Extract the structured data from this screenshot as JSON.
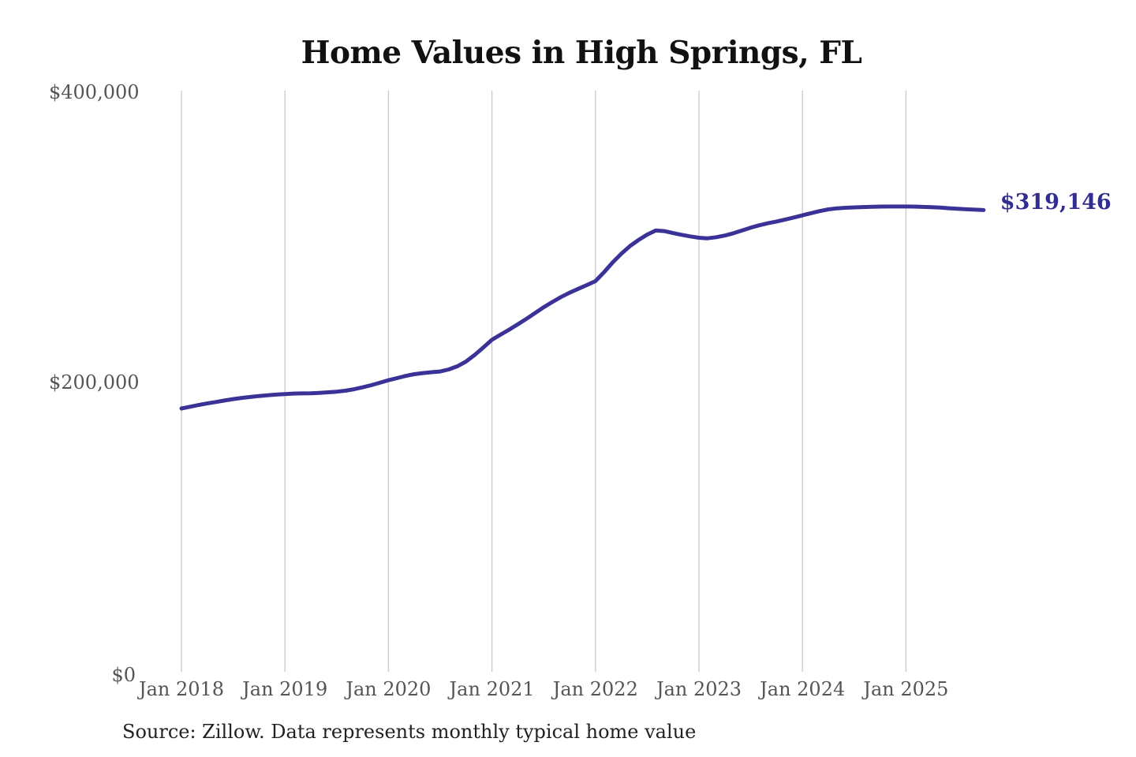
{
  "header": {
    "title": "Home Values in High Springs, FL"
  },
  "footer": {
    "source_note": "Source: Zillow. Data represents monthly typical home value"
  },
  "chart_data": {
    "type": "line",
    "title": "Home Values in High Springs, FL",
    "xlabel": "",
    "ylabel": "",
    "ylim": [
      0,
      400000
    ],
    "grid": "vertical gridlines at each January, no horizontal gridlines, no axis lines",
    "legend": "none",
    "y_ticks": [
      {
        "label": "$0",
        "value": 0
      },
      {
        "label": "$200,000",
        "value": 200000
      },
      {
        "label": "$400,000",
        "value": 400000
      }
    ],
    "x_ticks": [
      "Jan 2018",
      "Jan 2019",
      "Jan 2020",
      "Jan 2021",
      "Jan 2022",
      "Jan 2023",
      "Jan 2024",
      "Jan 2025"
    ],
    "end_label": "$319,146",
    "final_value": 319146,
    "series": [
      {
        "name": "Monthly typical home value",
        "start_month": "2018-01",
        "end_month": "2025-10",
        "values": [
          182000,
          183200,
          184400,
          185500,
          186500,
          187500,
          188500,
          189300,
          190000,
          190600,
          191100,
          191600,
          192000,
          192300,
          192400,
          192500,
          192800,
          193200,
          193600,
          194300,
          195300,
          196600,
          198100,
          199800,
          201500,
          203000,
          204500,
          205700,
          206500,
          207100,
          207600,
          209000,
          211200,
          214500,
          219000,
          224200,
          229500,
          233000,
          236500,
          240200,
          244000,
          248000,
          252000,
          255600,
          259000,
          262000,
          264700,
          267300,
          270000,
          276200,
          283000,
          289000,
          294200,
          298500,
          302200,
          305000,
          304600,
          303200,
          302000,
          300900,
          300000,
          299600,
          300400,
          301500,
          303100,
          305000,
          307000,
          308600,
          310000,
          311200,
          312600,
          314000,
          315500,
          317000,
          318400,
          319600,
          320300,
          320700,
          321000,
          321200,
          321400,
          321500,
          321600,
          321600,
          321600,
          321500,
          321300,
          321100,
          320800,
          320400,
          320000,
          319700,
          319400,
          319146
        ]
      }
    ],
    "colors": {
      "line": "#3a3296",
      "end_label": "#312e90",
      "grid": "#c9c9c9",
      "axis_text": "#555555",
      "title_text": "#111111",
      "source_text": "#222222"
    }
  }
}
